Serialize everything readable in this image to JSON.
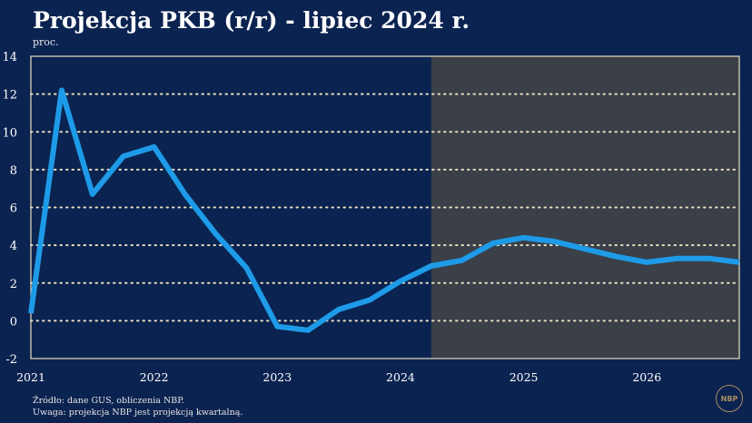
{
  "title": "Projekcja PKB (r/r) - lipiec 2024 r.",
  "unit_label": "proc.",
  "source_lines": [
    "Źródło: dane GUS, obliczenia NBP.",
    "Uwaga: projekcja NBP jest projekcją kwartalną."
  ],
  "logo_text": "NBP",
  "colors": {
    "background": "#0b2350",
    "projection_band": "#3a3f48",
    "series": "#1e9be8",
    "frame": "#e8dfc0",
    "grid": "#e8dfc0"
  },
  "chart_data": {
    "type": "line",
    "title": "Projekcja PKB (r/r) - lipiec 2024 r.",
    "ylabel": "proc.",
    "ylim": [
      -2,
      14
    ],
    "yticks": [
      -2,
      0,
      2,
      4,
      6,
      8,
      10,
      12,
      14
    ],
    "xlim": [
      2021.0,
      2026.75
    ],
    "xticks": [
      "2021",
      "2022",
      "2023",
      "2024",
      "2025",
      "2026"
    ],
    "grid": "horizontal dotted",
    "projection_start": 2024.25,
    "series": [
      {
        "x": [
          2021.0,
          2021.25,
          2021.5,
          2021.75,
          2022.0,
          2022.25,
          2022.5,
          2022.75,
          2023.0,
          2023.25,
          2023.5,
          2023.75,
          2024.0,
          2024.25,
          2024.5,
          2024.75,
          2025.0,
          2025.25,
          2025.5,
          2025.75,
          2026.0,
          2026.25,
          2026.5,
          2026.75
        ],
        "values": [
          0.4,
          12.2,
          6.7,
          8.7,
          9.2,
          6.7,
          4.6,
          2.8,
          -0.3,
          -0.5,
          0.6,
          1.1,
          2.1,
          2.9,
          3.2,
          4.1,
          4.4,
          4.2,
          3.8,
          3.4,
          3.1,
          3.3,
          3.3,
          3.1
        ]
      }
    ]
  }
}
